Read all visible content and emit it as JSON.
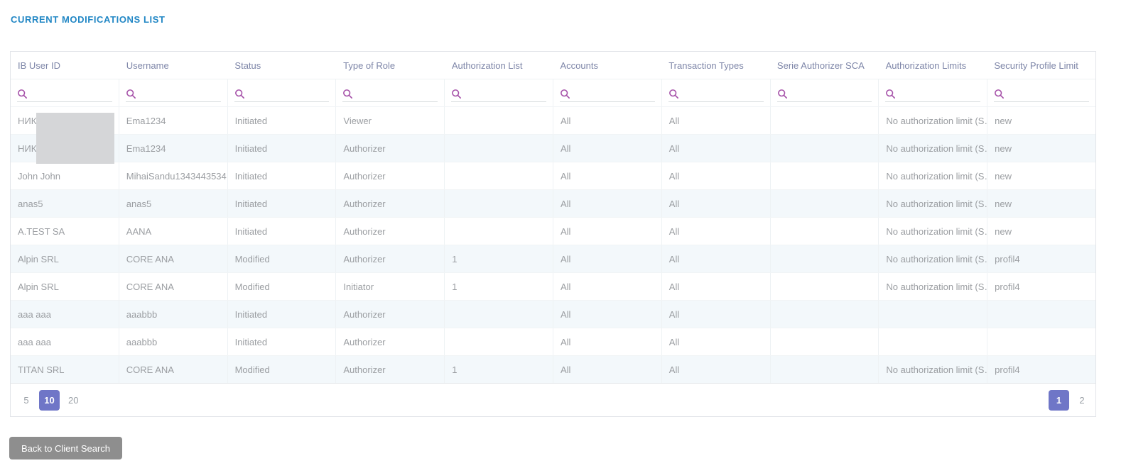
{
  "title": "CURRENT MODIFICATIONS LIST",
  "table": {
    "columns": [
      "IB User ID",
      "Username",
      "Status",
      "Type of Role",
      "Authorization List",
      "Accounts",
      "Transaction Types",
      "Serie Authorizer SCA",
      "Authorization Limits",
      "Security Profile Limit"
    ],
    "search_placeholder": "",
    "rows": [
      [
        "НИК",
        "Ema1234",
        "Initiated",
        "Viewer",
        "",
        "All",
        "All",
        "",
        "No authorization limit (S…",
        "new"
      ],
      [
        "НИК",
        "Ema1234",
        "Initiated",
        "Authorizer",
        "",
        "All",
        "All",
        "",
        "No authorization limit (S…",
        "new"
      ],
      [
        "John John",
        "MihaiSandu1343443534",
        "Initiated",
        "Authorizer",
        "",
        "All",
        "All",
        "",
        "No authorization limit (S…",
        "new"
      ],
      [
        "anas5",
        "anas5",
        "Initiated",
        "Authorizer",
        "",
        "All",
        "All",
        "",
        "No authorization limit (S…",
        "new"
      ],
      [
        "A.TEST SA",
        "AANA",
        "Initiated",
        "Authorizer",
        "",
        "All",
        "All",
        "",
        "No authorization limit (S…",
        "new"
      ],
      [
        "Alpin SRL",
        "CORE ANA",
        "Modified",
        "Authorizer",
        "1",
        "All",
        "All",
        "",
        "No authorization limit (S…",
        "profil4"
      ],
      [
        "Alpin SRL",
        "CORE ANA",
        "Modified",
        "Initiator",
        "1",
        "All",
        "All",
        "",
        "No authorization limit (S…",
        "profil4"
      ],
      [
        "aaa aaa",
        "aaabbb",
        "Initiated",
        "Authorizer",
        "",
        "All",
        "All",
        "",
        "",
        ""
      ],
      [
        "aaa aaa",
        "aaabbb",
        "Initiated",
        "Authorizer",
        "",
        "All",
        "All",
        "",
        "",
        ""
      ],
      [
        "TITAN SRL",
        "CORE ANA",
        "Modified",
        "Authorizer",
        "1",
        "All",
        "All",
        "",
        "No authorization limit (S…",
        "profil4"
      ]
    ]
  },
  "pagination": {
    "page_sizes": [
      "5",
      "10",
      "20"
    ],
    "selected_page_size": "10",
    "pages": [
      "1",
      "2"
    ],
    "current_page": "1"
  },
  "back_button_label": "Back to Client Search",
  "colors": {
    "title": "#2287c5",
    "header_text": "#7e86a8",
    "cell_text": "#9b9ea2",
    "search_icon": "#a550a8",
    "row_alt_bg": "#f3f8fb",
    "selected_badge": "#6f76c7",
    "back_button_bg": "#8e8e8e",
    "redaction_box": "#d5d6d8"
  }
}
